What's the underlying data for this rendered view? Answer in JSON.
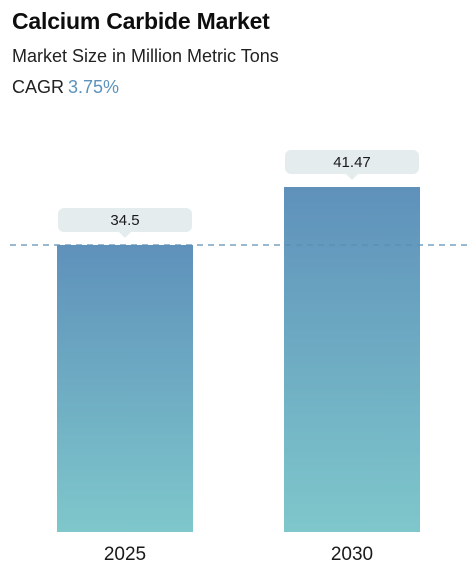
{
  "header": {
    "title": "Calcium Carbide Market",
    "subtitle": "Market Size in Million Metric Tons",
    "cagr_label": "CAGR",
    "cagr_value": "3.75%"
  },
  "colors": {
    "bar_top": "#5f91bb",
    "bar_bottom": "#7ec7cb",
    "badge_bg": "#e4ecee",
    "reference_line": "#5b8fb5",
    "cagr_accent": "#5b93bd"
  },
  "chart_data": {
    "type": "bar",
    "categories": [
      "2025",
      "2030"
    ],
    "values": [
      34.5,
      41.47
    ],
    "data_labels": [
      "34.5",
      "41.47"
    ],
    "reference_line_value": 34.5,
    "reference_line_style": "dashed",
    "ylim": [
      0,
      41.47
    ],
    "grid": false,
    "legend": "none"
  }
}
